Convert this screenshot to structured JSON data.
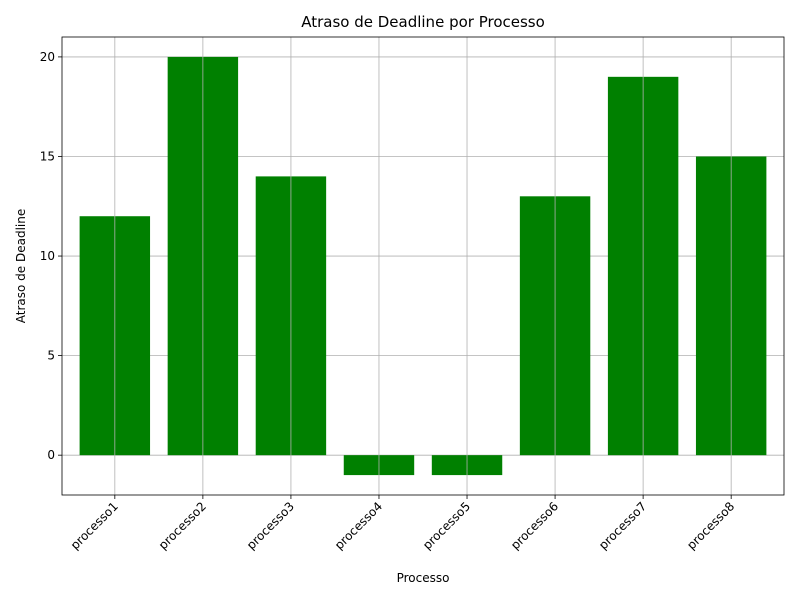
{
  "chart_data": {
    "type": "bar",
    "title": "Atraso de Deadline por Processo",
    "xlabel": "Processo",
    "ylabel": "Atraso de Deadline",
    "categories": [
      "processo1",
      "processo2",
      "processo3",
      "processo4",
      "processo5",
      "processo6",
      "processo7",
      "processo8"
    ],
    "values": [
      12,
      20,
      14,
      -1,
      -1,
      13,
      19,
      15
    ],
    "ylim": [
      -2,
      21
    ],
    "yticks": [
      0,
      5,
      10,
      15,
      20
    ],
    "grid": true,
    "bar_color": "#008000",
    "x_tick_rotation": 45
  }
}
